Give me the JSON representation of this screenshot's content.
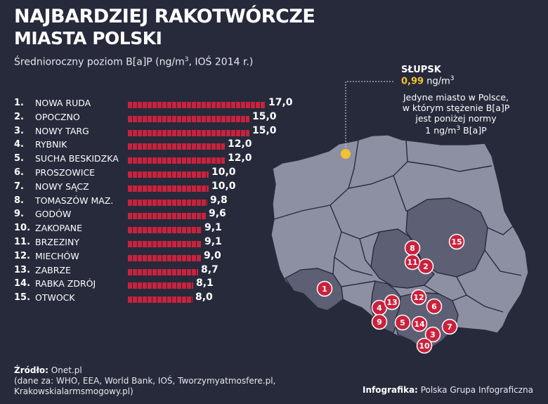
{
  "header": {
    "title_line1": "NAJBARDZIEJ RAKOTWÓRCZE",
    "title_line2": "MIASTA POLSKI",
    "subtitle_prefix": "Średnioroczny poziom B[a]P (ng/m",
    "subtitle_sup": "3",
    "subtitle_suffix": ", IOŚ 2014 r.)"
  },
  "chart_data": {
    "type": "bar",
    "orientation": "horizontal",
    "ranks": [
      "1.",
      "2.",
      "3.",
      "4.",
      "5.",
      "6.",
      "7.",
      "8.",
      "9.",
      "10.",
      "11.",
      "12.",
      "13.",
      "14.",
      "15."
    ],
    "categories": [
      "NOWA RUDA",
      "OPOCZNO",
      "NOWY TARG",
      "RYBNIK",
      "SUCHA BESKIDZKA",
      "PROSZOWICE",
      "NOWY SĄCZ",
      "TOMASZÓW MAZ.",
      "GODÓW",
      "ZAKOPANE",
      "BRZEZINY",
      "MIECHÓW",
      "ZABRZE",
      "RABKA ZDRÓJ",
      "OTWOCK"
    ],
    "values": [
      17.0,
      15.0,
      15.0,
      12.0,
      12.0,
      10.0,
      10.0,
      9.8,
      9.6,
      9.1,
      9.1,
      9.0,
      8.7,
      8.1,
      8.0
    ],
    "value_labels": [
      "17,0",
      "15,0",
      "15,0",
      "12,0",
      "12,0",
      "10,0",
      "10,0",
      "9,8",
      "9,6",
      "9,1",
      "9,1",
      "9,0",
      "8,7",
      "8,1",
      "8,0"
    ],
    "bar_color": "#c9223d"
  },
  "map": {
    "land_color": "#8d90a3",
    "region_dark_color": "#5d6074",
    "border_color": "#262a3b",
    "pin_color": "#c9223d",
    "highlight_color": "#f2c230",
    "pins": [
      "1",
      "2",
      "3",
      "4",
      "5",
      "6",
      "7",
      "8",
      "9",
      "10",
      "11",
      "12",
      "13",
      "14",
      "15"
    ]
  },
  "annotation": {
    "city": "SŁUPSK",
    "value": "0,99",
    "unit_prefix": "ng/m",
    "unit_sup": "3",
    "note_line1": "Jedyne miasto w Polsce,",
    "note_line2": "w którym stężenie B[a]P",
    "note_line3": "jest poniżej normy",
    "note_line4_prefix": "1 ng/m",
    "note_line4_sup": "3",
    "note_line4_suffix": " B[a]P"
  },
  "footer": {
    "source_label": "Źródło:",
    "source_value": "Onet.pl",
    "source_line2": "(dane za: WHO, EEA, World Bank, IOŚ, Tworzymyatmosfere.pl,",
    "source_line3": "Krakowskialarmsmogowy.pl)",
    "credit_label": "Infografika:",
    "credit_value": "Polska Grupa Infograficzna"
  }
}
